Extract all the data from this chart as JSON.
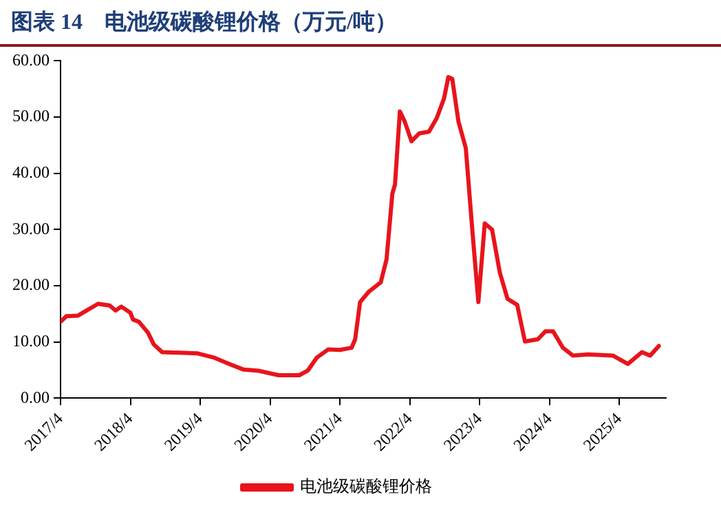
{
  "chart_data": {
    "type": "line",
    "title": "图表 14　电池级碳酸锂价格（万元/吨）",
    "x": [
      "2017-04-01",
      "2017-05-01",
      "2017-07-01",
      "2017-08-15",
      "2017-10-15",
      "2017-12-15",
      "2018-01-15",
      "2018-02-15",
      "2018-04-01",
      "2018-04-15",
      "2018-05-15",
      "2018-07-01",
      "2018-08-01",
      "2018-09-15",
      "2019-03-15",
      "2019-06-15",
      "2019-09-01",
      "2019-11-15",
      "2020-02-01",
      "2020-05-15",
      "2020-09-01",
      "2020-10-15",
      "2020-12-01",
      "2021-02-01",
      "2021-04-01",
      "2021-06-01",
      "2021-06-20",
      "2021-07-15",
      "2021-09-01",
      "2021-11-01",
      "2021-12-01",
      "2022-01-01",
      "2022-01-15",
      "2022-02-10",
      "2022-03-05",
      "2022-04-10",
      "2022-05-20",
      "2022-07-10",
      "2022-08-20",
      "2022-09-28",
      "2022-10-20",
      "2022-11-10",
      "2022-12-12",
      "2023-01-20",
      "2023-02-25",
      "2023-03-25",
      "2023-04-28",
      "2023-06-05",
      "2023-07-15",
      "2023-08-25",
      "2023-10-15",
      "2023-11-25",
      "2024-02-01",
      "2024-03-10",
      "2024-04-20",
      "2024-06-10",
      "2024-08-01",
      "2024-10-20",
      "2025-02-28",
      "2025-05-15",
      "2025-07-28",
      "2025-09-10",
      "2025-10-25"
    ],
    "series": [
      {
        "name": "电池级碳酸锂价格",
        "color": "#e8141c",
        "values": [
          13.6,
          14.6,
          14.7,
          15.6,
          16.8,
          16.5,
          15.6,
          16.3,
          15.2,
          14.0,
          13.6,
          11.7,
          9.6,
          8.2,
          8.0,
          7.2,
          6.1,
          5.1,
          4.9,
          4.1,
          4.1,
          4.9,
          7.2,
          8.7,
          8.6,
          9.0,
          10.5,
          17.1,
          19.0,
          20.6,
          24.7,
          36.4,
          38.0,
          51.0,
          49.2,
          45.7,
          47.1,
          47.4,
          49.8,
          53.3,
          57.1,
          56.8,
          49.2,
          44.5,
          29.4,
          17.1,
          31.1,
          30.0,
          22.4,
          17.7,
          16.6,
          10.1,
          10.5,
          11.9,
          11.9,
          9.0,
          7.6,
          7.8,
          7.6,
          6.1,
          8.2,
          7.6,
          9.3
        ]
      }
    ],
    "xlim": [
      "2017-04-01",
      "2025-12-01"
    ],
    "xticks": [
      {
        "value": "2017-04-01",
        "label": "2017/4"
      },
      {
        "value": "2018-04-01",
        "label": "2018/4"
      },
      {
        "value": "2019-04-01",
        "label": "2019/4"
      },
      {
        "value": "2020-04-01",
        "label": "2020/4"
      },
      {
        "value": "2021-04-01",
        "label": "2021/4"
      },
      {
        "value": "2022-04-01",
        "label": "2022/4"
      },
      {
        "value": "2023-04-01",
        "label": "2023/4"
      },
      {
        "value": "2024-04-01",
        "label": "2024/4"
      },
      {
        "value": "2025-04-01",
        "label": "2025/4"
      }
    ],
    "ylim": [
      0,
      60
    ],
    "yticks": [
      {
        "value": 0,
        "label": "0.00"
      },
      {
        "value": 10,
        "label": "10.00"
      },
      {
        "value": 20,
        "label": "20.00"
      },
      {
        "value": 30,
        "label": "30.00"
      },
      {
        "value": 40,
        "label": "40.00"
      },
      {
        "value": 50,
        "label": "50.00"
      },
      {
        "value": 60,
        "label": "60.00"
      }
    ],
    "grid": false,
    "legend": "bottom",
    "marker": "none",
    "line_style": "solid"
  }
}
